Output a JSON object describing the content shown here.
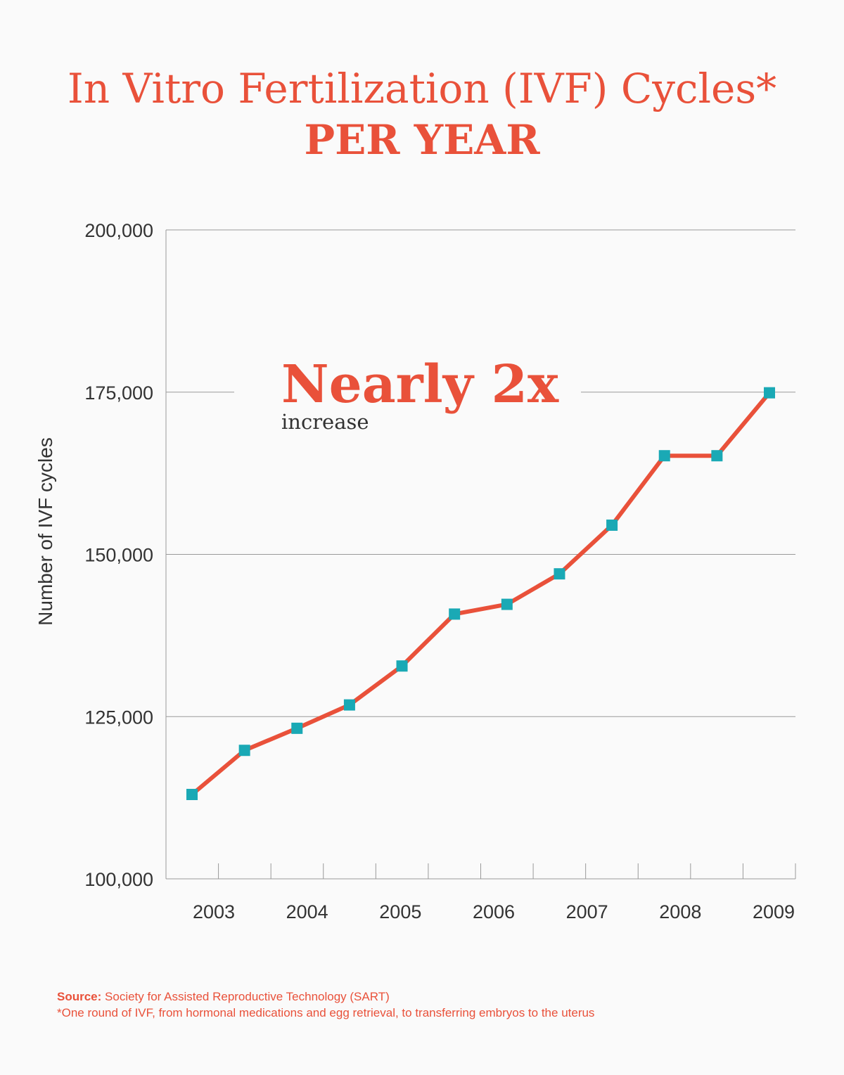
{
  "header": {
    "title": "In Vitro Fertilization (IVF) Cycles*",
    "subtitle": "PER YEAR"
  },
  "annotation": {
    "main": "Nearly 2x",
    "sub": "increase"
  },
  "footer": {
    "source_label": "Source:",
    "source_text": " Society for Assisted Reproductive Technology (SART)",
    "note": "*One round of IVF, from hormonal medications and egg retrieval, to transferring embryos to the uterus"
  },
  "colors": {
    "line": "#e9513a",
    "marker": "#1aa9b5",
    "grid": "#999999",
    "text": "#333333"
  },
  "chart_data": {
    "type": "line",
    "title": "",
    "xlabel": "",
    "ylabel": "Number of IVF cycles",
    "ylim": [
      100000,
      200000
    ],
    "yticks": [
      100000,
      125000,
      150000,
      175000,
      200000
    ],
    "ytick_labels": [
      "100,000",
      "125,000",
      "150,000",
      "175,000",
      "200,000"
    ],
    "xtick_labels": [
      "2003",
      "2004",
      "2005",
      "2006",
      "2007",
      "2008",
      "2009"
    ],
    "grid": "horizontal",
    "series": [
      {
        "values": [
          113000,
          119800,
          123200,
          126800,
          132800,
          140800,
          142300,
          147000,
          154500,
          165200,
          165200,
          174900
        ]
      }
    ]
  }
}
